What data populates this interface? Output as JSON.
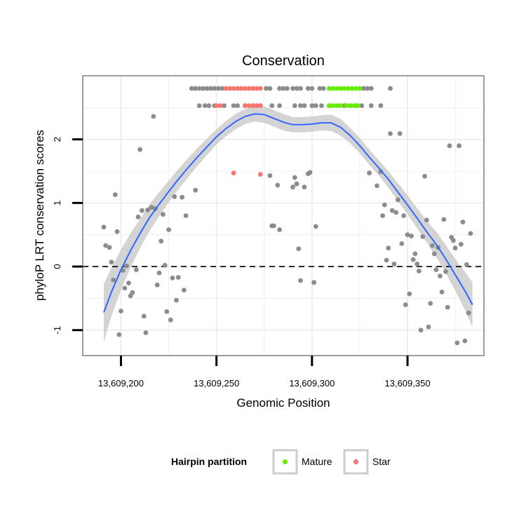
{
  "chart_data": {
    "type": "scatter",
    "title": "Conservation",
    "xlabel": "Genomic Position",
    "ylabel": "phyloP LRT conservation scores",
    "xlim": [
      13609180,
      13609390
    ],
    "ylim": [
      -1.4,
      3.0
    ],
    "x_ticks": [
      13609200,
      13609250,
      13609300,
      13609350
    ],
    "x_tick_labels": [
      "13,609,200",
      "13,609,250",
      "13,609,300",
      "13,609,350"
    ],
    "y_ticks": [
      -1,
      0,
      1,
      2
    ],
    "y_tick_labels": [
      "-1",
      "0",
      "1",
      "2"
    ],
    "reference_line": {
      "y": 0,
      "style": "dashed",
      "color": "#000000"
    },
    "colors": {
      "other": "#8c8c8c",
      "Mature": "#66ee00",
      "Star": "#f8766d",
      "smooth": "#3366ff",
      "ribbon": "#cccccc",
      "grid": "#ebebeb"
    },
    "legend": {
      "title": "Hairpin partition",
      "position": "bottom",
      "entries": [
        {
          "label": "Mature",
          "color": "#66ee00"
        },
        {
          "label": "Star",
          "color": "#f8766d"
        }
      ]
    },
    "series": [
      {
        "name": "Other",
        "points": [
          [
            13609191,
            0.62
          ],
          [
            13609192,
            0.33
          ],
          [
            13609194,
            0.3
          ],
          [
            13609195,
            0.07
          ],
          [
            13609196,
            -0.21
          ],
          [
            13609197,
            1.13
          ],
          [
            13609198,
            0.55
          ],
          [
            13609199,
            -1.07
          ],
          [
            13609200,
            -0.7
          ],
          [
            13609201,
            -0.06
          ],
          [
            13609202,
            -0.34
          ],
          [
            13609203,
            0.01
          ],
          [
            13609204,
            -0.26
          ],
          [
            13609205,
            -0.46
          ],
          [
            13609206,
            -0.41
          ],
          [
            13609208,
            -0.05
          ],
          [
            13609209,
            0.78
          ],
          [
            13609210,
            1.84
          ],
          [
            13609211,
            0.88
          ],
          [
            13609212,
            -0.78
          ],
          [
            13609213,
            -1.04
          ],
          [
            13609214,
            0.89
          ],
          [
            13609216,
            0.93
          ],
          [
            13609217,
            2.36
          ],
          [
            13609218,
            0.91
          ],
          [
            13609219,
            -0.29
          ],
          [
            13609220,
            -0.1
          ],
          [
            13609221,
            0.4
          ],
          [
            13609222,
            0.82
          ],
          [
            13609223,
            0.02
          ],
          [
            13609224,
            -0.71
          ],
          [
            13609225,
            0.58
          ],
          [
            13609226,
            -0.84
          ],
          [
            13609227,
            -0.18
          ],
          [
            13609228,
            1.1
          ],
          [
            13609229,
            -0.53
          ],
          [
            13609230,
            -0.17
          ],
          [
            13609232,
            1.09
          ],
          [
            13609233,
            -0.37
          ],
          [
            13609234,
            0.8
          ],
          [
            13609239,
            1.2
          ],
          [
            13609237,
            2.8
          ],
          [
            13609239,
            2.8
          ],
          [
            13609241,
            2.8
          ],
          [
            13609243,
            2.8
          ],
          [
            13609245,
            2.8
          ],
          [
            13609247,
            2.8
          ],
          [
            13609249,
            2.8
          ],
          [
            13609251,
            2.8
          ],
          [
            13609253,
            2.8
          ],
          [
            13609276,
            2.8
          ],
          [
            13609278,
            2.8
          ],
          [
            13609283,
            2.8
          ],
          [
            13609285,
            2.8
          ],
          [
            13609287,
            2.8
          ],
          [
            13609290,
            2.8
          ],
          [
            13609292,
            2.8
          ],
          [
            13609294,
            2.8
          ],
          [
            13609298,
            2.8
          ],
          [
            13609300,
            2.8
          ],
          [
            13609304,
            2.8
          ],
          [
            13609306,
            2.8
          ],
          [
            13609327,
            2.8
          ],
          [
            13609329,
            2.8
          ],
          [
            13609331,
            2.8
          ],
          [
            13609341,
            2.8
          ],
          [
            13609241,
            2.53
          ],
          [
            13609244,
            2.53
          ],
          [
            13609246,
            2.53
          ],
          [
            13609249,
            2.53
          ],
          [
            13609254,
            2.53
          ],
          [
            13609259,
            2.53
          ],
          [
            13609261,
            2.53
          ],
          [
            13609265,
            2.53
          ],
          [
            13609269,
            2.53
          ],
          [
            13609273,
            2.53
          ],
          [
            13609279,
            2.53
          ],
          [
            13609283,
            2.53
          ],
          [
            13609291,
            2.53
          ],
          [
            13609294,
            2.53
          ],
          [
            13609296,
            2.53
          ],
          [
            13609300,
            2.53
          ],
          [
            13609302,
            2.53
          ],
          [
            13609305,
            2.53
          ],
          [
            13609309,
            2.53
          ],
          [
            13609313,
            2.53
          ],
          [
            13609317,
            2.53
          ],
          [
            13609320,
            2.53
          ],
          [
            13609323,
            2.53
          ],
          [
            13609326,
            2.53
          ],
          [
            13609331,
            2.53
          ],
          [
            13609336,
            2.53
          ],
          [
            13609278,
            1.43
          ],
          [
            13609279,
            0.64
          ],
          [
            13609280,
            0.64
          ],
          [
            13609282,
            1.28
          ],
          [
            13609283,
            0.58
          ],
          [
            13609290,
            1.25
          ],
          [
            13609291,
            1.4
          ],
          [
            13609292,
            1.3
          ],
          [
            13609293,
            0.28
          ],
          [
            13609294,
            -0.22
          ],
          [
            13609296,
            1.25
          ],
          [
            13609298,
            1.46
          ],
          [
            13609299,
            1.48
          ],
          [
            13609301,
            -0.25
          ],
          [
            13609302,
            0.63
          ],
          [
            13609330,
            1.47
          ],
          [
            13609334,
            1.27
          ],
          [
            13609336,
            1.49
          ],
          [
            13609337,
            0.8
          ],
          [
            13609338,
            0.97
          ],
          [
            13609339,
            0.1
          ],
          [
            13609340,
            0.29
          ],
          [
            13609341,
            2.09
          ],
          [
            13609342,
            0.88
          ],
          [
            13609343,
            0.04
          ],
          [
            13609344,
            0.85
          ],
          [
            13609345,
            1.05
          ],
          [
            13609346,
            2.09
          ],
          [
            13609347,
            0.36
          ],
          [
            13609348,
            0.8
          ],
          [
            13609349,
            -0.6
          ],
          [
            13609350,
            0.5
          ],
          [
            13609351,
            -0.43
          ],
          [
            13609352,
            0.48
          ],
          [
            13609353,
            0.11
          ],
          [
            13609354,
            0.2
          ],
          [
            13609355,
            0.04
          ],
          [
            13609356,
            -0.07
          ],
          [
            13609357,
            -1.0
          ],
          [
            13609358,
            0.47
          ],
          [
            13609359,
            1.42
          ],
          [
            13609360,
            0.73
          ],
          [
            13609361,
            -0.95
          ],
          [
            13609362,
            -0.58
          ],
          [
            13609363,
            0.33
          ],
          [
            13609364,
            0.2
          ],
          [
            13609365,
            -0.05
          ],
          [
            13609366,
            0.3
          ],
          [
            13609367,
            -0.15
          ],
          [
            13609368,
            -0.4
          ],
          [
            13609369,
            0.74
          ],
          [
            13609370,
            -0.08
          ],
          [
            13609371,
            -0.64
          ],
          [
            13609372,
            1.9
          ],
          [
            13609373,
            0.46
          ],
          [
            13609374,
            0.41
          ],
          [
            13609375,
            0.29
          ],
          [
            13609376,
            -1.2
          ],
          [
            13609377,
            1.9
          ],
          [
            13609378,
            0.35
          ],
          [
            13609379,
            0.7
          ],
          [
            13609380,
            -1.17
          ],
          [
            13609381,
            0.03
          ],
          [
            13609382,
            -0.73
          ],
          [
            13609383,
            0.52
          ]
        ]
      },
      {
        "name": "Mature",
        "points": [
          [
            13609309,
            2.8
          ],
          [
            13609311,
            2.8
          ],
          [
            13609313,
            2.8
          ],
          [
            13609315,
            2.8
          ],
          [
            13609317,
            2.8
          ],
          [
            13609319,
            2.8
          ],
          [
            13609321,
            2.8
          ],
          [
            13609323,
            2.8
          ],
          [
            13609325,
            2.8
          ],
          [
            13609309,
            2.53
          ],
          [
            13609311,
            2.53
          ],
          [
            13609313,
            2.53
          ],
          [
            13609315,
            2.53
          ],
          [
            13609318,
            2.53
          ],
          [
            13609320,
            2.53
          ],
          [
            13609322,
            2.53
          ],
          [
            13609324,
            2.53
          ]
        ]
      },
      {
        "name": "Star",
        "points": [
          [
            13609255,
            2.8
          ],
          [
            13609257,
            2.8
          ],
          [
            13609259,
            2.8
          ],
          [
            13609261,
            2.8
          ],
          [
            13609263,
            2.8
          ],
          [
            13609265,
            2.8
          ],
          [
            13609267,
            2.8
          ],
          [
            13609269,
            2.8
          ],
          [
            13609271,
            2.8
          ],
          [
            13609273,
            2.8
          ],
          [
            13609250,
            2.53
          ],
          [
            13609252,
            2.53
          ],
          [
            13609265,
            2.53
          ],
          [
            13609267,
            2.53
          ],
          [
            13609269,
            2.53
          ],
          [
            13609271,
            2.53
          ],
          [
            13609273,
            2.53
          ],
          [
            13609259,
            1.47
          ],
          [
            13609273,
            1.45
          ]
        ]
      }
    ],
    "smooth": {
      "method": "loess",
      "color": "#3366ff",
      "x": [
        13609191,
        13609195,
        13609200,
        13609205,
        13609210,
        13609215,
        13609220,
        13609225,
        13609230,
        13609235,
        13609240,
        13609245,
        13609250,
        13609255,
        13609260,
        13609265,
        13609270,
        13609275,
        13609280,
        13609285,
        13609290,
        13609295,
        13609300,
        13609305,
        13609310,
        13609315,
        13609320,
        13609325,
        13609330,
        13609335,
        13609340,
        13609345,
        13609350,
        13609355,
        13609360,
        13609365,
        13609370,
        13609375,
        13609380,
        13609384
      ],
      "y": [
        -0.72,
        -0.4,
        -0.05,
        0.25,
        0.52,
        0.77,
        0.98,
        1.18,
        1.37,
        1.55,
        1.72,
        1.88,
        2.04,
        2.17,
        2.28,
        2.36,
        2.4,
        2.39,
        2.33,
        2.27,
        2.23,
        2.23,
        2.24,
        2.26,
        2.26,
        2.19,
        2.06,
        1.9,
        1.72,
        1.55,
        1.37,
        1.17,
        0.97,
        0.76,
        0.55,
        0.35,
        0.12,
        -0.13,
        -0.38,
        -0.6
      ],
      "lower": [
        -1.18,
        -0.78,
        -0.37,
        -0.02,
        0.29,
        0.56,
        0.79,
        1.01,
        1.21,
        1.4,
        1.58,
        1.75,
        1.92,
        2.05,
        2.16,
        2.24,
        2.28,
        2.26,
        2.2,
        2.14,
        2.11,
        2.11,
        2.12,
        2.14,
        2.13,
        2.06,
        1.94,
        1.78,
        1.6,
        1.43,
        1.24,
        1.03,
        0.82,
        0.6,
        0.38,
        0.15,
        -0.1,
        -0.38,
        -0.68,
        -0.95
      ],
      "upper": [
        -0.27,
        -0.02,
        0.27,
        0.52,
        0.75,
        0.98,
        1.17,
        1.35,
        1.53,
        1.7,
        1.86,
        2.01,
        2.16,
        2.29,
        2.4,
        2.48,
        2.52,
        2.52,
        2.46,
        2.4,
        2.35,
        2.35,
        2.36,
        2.38,
        2.39,
        2.32,
        2.18,
        2.02,
        1.84,
        1.67,
        1.5,
        1.31,
        1.12,
        0.92,
        0.72,
        0.55,
        0.34,
        0.12,
        -0.08,
        -0.25
      ]
    }
  }
}
